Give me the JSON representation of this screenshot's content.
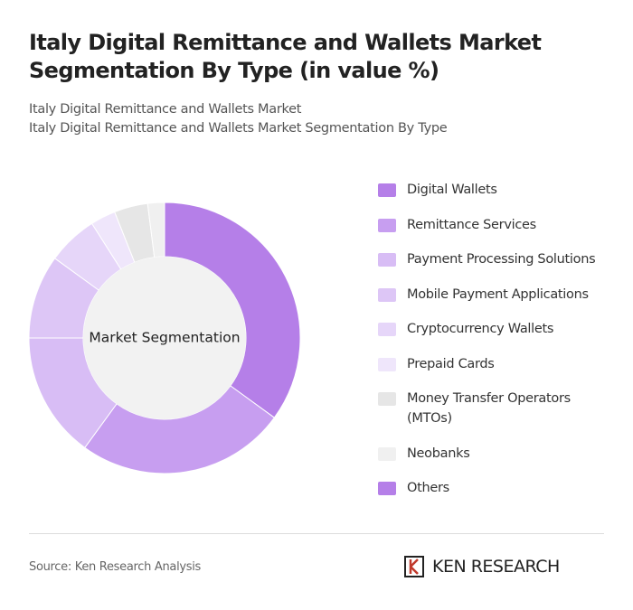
{
  "chart_data": {
    "type": "donut",
    "title": "Italy Digital Remittance and Wallets Market Segmentation By Type (in value %)",
    "subtitle_lines": [
      "Italy Digital Remittance and Wallets Market",
      "Italy Digital Remittance and Wallets Market Segmentation By Type"
    ],
    "center_label": "Market Segmentation",
    "categories": [
      "Digital Wallets",
      "Remittance Services",
      "Payment Processing Solutions",
      "Mobile Payment Applications",
      "Cryptocurrency Wallets",
      "Prepaid Cards",
      "Money Transfer Operators (MTOs)",
      "Neobanks",
      "Others"
    ],
    "values": [
      35,
      25,
      15,
      10,
      6,
      3,
      4,
      2,
      0
    ],
    "colors": [
      "#b57fe8",
      "#c79ef0",
      "#d8bdf5",
      "#ddc6f6",
      "#e6d6f9",
      "#efe6fb",
      "#e6e6e6",
      "#f0f0f0",
      "#b57fe8"
    ],
    "source": "Source: Ken Research Analysis",
    "brand": "KEN RESEARCH"
  }
}
